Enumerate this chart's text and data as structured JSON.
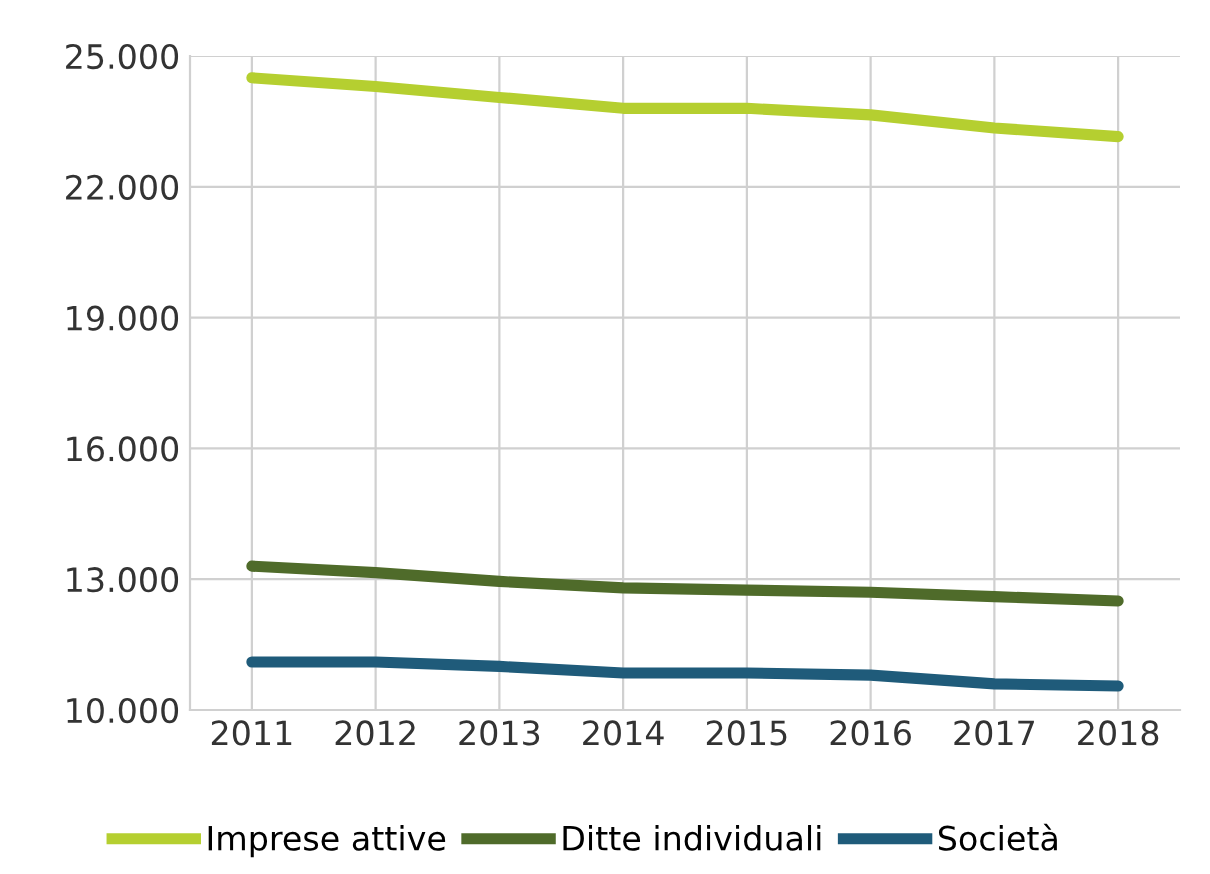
{
  "chart_data": {
    "type": "line",
    "categories": [
      "2011",
      "2012",
      "2013",
      "2014",
      "2015",
      "2016",
      "2017",
      "2018"
    ],
    "series": [
      {
        "name": "Imprese attive",
        "color": "#b5cf30",
        "values": [
          24500,
          24300,
          24050,
          23800,
          23800,
          23650,
          23350,
          23150
        ]
      },
      {
        "name": "Ditte individuali",
        "color": "#4f6b2a",
        "values": [
          13300,
          13150,
          12950,
          12800,
          12750,
          12700,
          12600,
          12500
        ]
      },
      {
        "name": "Società",
        "color": "#1f5b7a",
        "values": [
          11100,
          11100,
          11000,
          10850,
          10850,
          10800,
          10600,
          10550
        ]
      }
    ],
    "ylim": [
      10000,
      25000
    ],
    "yticks": [
      {
        "value": 10000,
        "label": "10.000"
      },
      {
        "value": 13000,
        "label": "13.000"
      },
      {
        "value": 16000,
        "label": "16.000"
      },
      {
        "value": 19000,
        "label": "19.000"
      },
      {
        "value": 22000,
        "label": "22.000"
      },
      {
        "value": 25000,
        "label": "25.000"
      }
    ],
    "grid": true,
    "legend": "bottom",
    "marker": "none",
    "line_style": "solid"
  }
}
